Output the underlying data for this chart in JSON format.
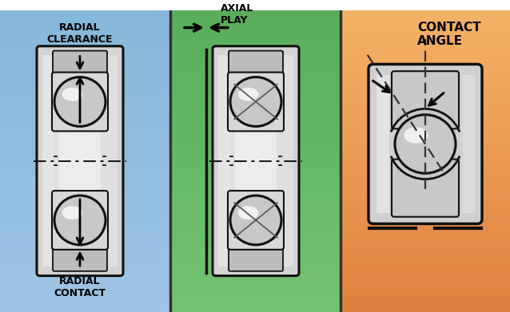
{
  "panels": {
    "left_color": "#85bdd8",
    "mid_color": "#6db56d",
    "right_color_top": "#e8834a",
    "right_color_bot": "#f0b080"
  },
  "labels": {
    "radial_clearance": "RADIAL\nCLEARANCE",
    "axial_play": "AXIAL\nPLAY",
    "contact_angle": "CONTACT\nANGLE",
    "radial_contact": "RADIAL\nCONTACT"
  },
  "colors": {
    "outer_fill": "#d4d4d4",
    "inner_fill": "#e8e8e8",
    "ball_fill": "#c8c8c8",
    "ball_shine": "#f0f0f0",
    "edge": "#111111",
    "groove_fill": "#bcbcbc",
    "retainer_fill": "#cccccc",
    "white_area": "#e8e8e8"
  },
  "lw": 2.2,
  "font_size": 9
}
